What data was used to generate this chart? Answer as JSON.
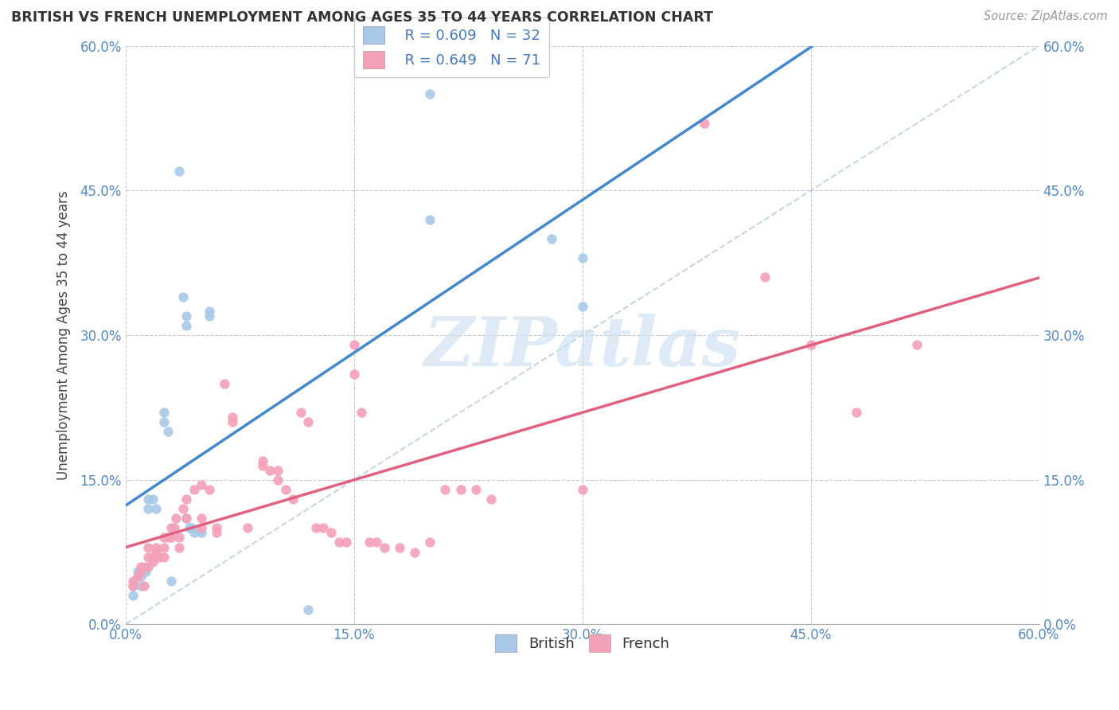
{
  "title": "BRITISH VS FRENCH UNEMPLOYMENT AMONG AGES 35 TO 44 YEARS CORRELATION CHART",
  "source": "Source: ZipAtlas.com",
  "ylabel": "Unemployment Among Ages 35 to 44 years",
  "xlim": [
    0,
    60
  ],
  "ylim": [
    0,
    60
  ],
  "xtick_vals": [
    0,
    15,
    30,
    45,
    60
  ],
  "ytick_vals": [
    0,
    15,
    30,
    45,
    60
  ],
  "tick_labels": [
    "0.0%",
    "15.0%",
    "30.0%",
    "45.0%",
    "60.0%"
  ],
  "british_color": "#a8c8e8",
  "french_color": "#f4a0b8",
  "british_line_color": "#4488cc",
  "french_line_color": "#e06080",
  "diagonal_line_color": "#b8ccd8",
  "british_R": 0.609,
  "british_N": 32,
  "french_R": 0.649,
  "french_N": 71,
  "legend_color": "#4477bb",
  "watermark_text": "ZIPatlas",
  "watermark_color": "#c8dff0",
  "background_color": "#ffffff",
  "grid_color": "#c8c8d0",
  "title_color": "#333333",
  "source_color": "#999999",
  "ylabel_color": "#444444",
  "tick_color": "#5588bb",
  "bottom_label_color": "#333333",
  "british_points": [
    [
      0.5,
      4.0
    ],
    [
      0.5,
      3.0
    ],
    [
      0.8,
      5.5
    ],
    [
      1.0,
      4.0
    ],
    [
      1.0,
      5.0
    ],
    [
      1.2,
      6.0
    ],
    [
      1.3,
      5.5
    ],
    [
      1.5,
      12.0
    ],
    [
      1.5,
      13.0
    ],
    [
      1.8,
      13.0
    ],
    [
      2.0,
      12.0
    ],
    [
      2.5,
      22.0
    ],
    [
      2.5,
      21.0
    ],
    [
      2.8,
      20.0
    ],
    [
      3.0,
      4.5
    ],
    [
      3.5,
      47.0
    ],
    [
      3.8,
      34.0
    ],
    [
      4.0,
      32.0
    ],
    [
      4.0,
      31.0
    ],
    [
      4.0,
      11.0
    ],
    [
      4.2,
      10.0
    ],
    [
      4.3,
      10.0
    ],
    [
      4.5,
      9.5
    ],
    [
      5.0,
      9.5
    ],
    [
      5.5,
      32.5
    ],
    [
      5.5,
      32.0
    ],
    [
      12.0,
      1.5
    ],
    [
      20.0,
      55.0
    ],
    [
      20.0,
      42.0
    ],
    [
      28.0,
      40.0
    ],
    [
      30.0,
      38.0
    ],
    [
      30.0,
      33.0
    ]
  ],
  "french_points": [
    [
      0.5,
      4.5
    ],
    [
      0.5,
      4.0
    ],
    [
      0.8,
      5.0
    ],
    [
      1.0,
      6.0
    ],
    [
      1.0,
      5.5
    ],
    [
      1.2,
      4.0
    ],
    [
      1.5,
      8.0
    ],
    [
      1.5,
      7.0
    ],
    [
      1.5,
      6.0
    ],
    [
      1.8,
      7.0
    ],
    [
      1.8,
      6.5
    ],
    [
      2.0,
      8.0
    ],
    [
      2.0,
      7.5
    ],
    [
      2.2,
      7.0
    ],
    [
      2.5,
      9.0
    ],
    [
      2.5,
      8.0
    ],
    [
      2.5,
      7.0
    ],
    [
      2.8,
      9.0
    ],
    [
      3.0,
      10.0
    ],
    [
      3.0,
      9.0
    ],
    [
      3.2,
      10.0
    ],
    [
      3.3,
      11.0
    ],
    [
      3.5,
      9.0
    ],
    [
      3.5,
      8.0
    ],
    [
      3.8,
      12.0
    ],
    [
      4.0,
      11.0
    ],
    [
      4.0,
      13.0
    ],
    [
      4.5,
      14.0
    ],
    [
      5.0,
      14.5
    ],
    [
      5.0,
      11.0
    ],
    [
      5.0,
      10.0
    ],
    [
      5.5,
      14.0
    ],
    [
      6.0,
      10.0
    ],
    [
      6.0,
      9.5
    ],
    [
      6.5,
      25.0
    ],
    [
      7.0,
      21.5
    ],
    [
      7.0,
      21.0
    ],
    [
      8.0,
      10.0
    ],
    [
      9.0,
      17.0
    ],
    [
      9.0,
      16.5
    ],
    [
      9.5,
      16.0
    ],
    [
      10.0,
      16.0
    ],
    [
      10.0,
      15.0
    ],
    [
      10.5,
      14.0
    ],
    [
      11.0,
      13.0
    ],
    [
      11.5,
      22.0
    ],
    [
      12.0,
      21.0
    ],
    [
      12.5,
      10.0
    ],
    [
      13.0,
      10.0
    ],
    [
      13.5,
      9.5
    ],
    [
      14.0,
      8.5
    ],
    [
      14.5,
      8.5
    ],
    [
      15.0,
      29.0
    ],
    [
      15.0,
      26.0
    ],
    [
      15.5,
      22.0
    ],
    [
      16.0,
      8.5
    ],
    [
      16.5,
      8.5
    ],
    [
      17.0,
      8.0
    ],
    [
      18.0,
      8.0
    ],
    [
      19.0,
      7.5
    ],
    [
      20.0,
      8.5
    ],
    [
      21.0,
      14.0
    ],
    [
      22.0,
      14.0
    ],
    [
      23.0,
      14.0
    ],
    [
      24.0,
      13.0
    ],
    [
      30.0,
      14.0
    ],
    [
      38.0,
      52.0
    ],
    [
      42.0,
      36.0
    ],
    [
      45.0,
      29.0
    ],
    [
      48.0,
      22.0
    ],
    [
      52.0,
      29.0
    ]
  ]
}
